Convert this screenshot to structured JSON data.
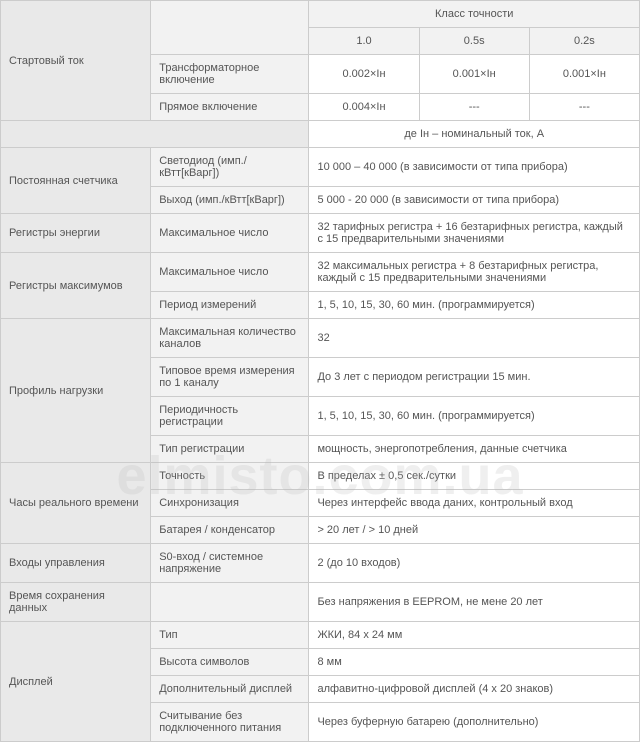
{
  "header": {
    "klass": "Класс точности",
    "c1": "1.0",
    "c2": "0.5s",
    "c3": "0.2s"
  },
  "start": {
    "group": "Стартовый ток",
    "p1": "Трансформаторное включение",
    "v11": "0.002×Iн",
    "v12": "0.001×Iн",
    "v13": "0.001×Iн",
    "p2": "Прямое включение",
    "v21": "0.004×Iн",
    "v22": "---",
    "v23": "---",
    "note": "де Iн – номинальный ток, А"
  },
  "const": {
    "group": "Постоянная счетчика",
    "p1": "Светодиод (имп./кВтт[кВарг])",
    "v1": "10 000 – 40 000 (в зависимости от типа прибора)",
    "p2": "Выход (имп./кВтт[кВарг])",
    "v2": "5 000 - 20 000 (в зависимости от типа прибора)"
  },
  "energy": {
    "group": "Регистры энергии",
    "p1": "Максимальное число",
    "v1": "32 тарифных регистра + 16 безтарифных регистра, каждый  с 15 предварительными значениями"
  },
  "max": {
    "group": "Регистры максимумов",
    "p1": "Максимальное число",
    "v1": "32 максимальных регистра + 8 безтарифных регистра, каждый с 15 предварительными значениями",
    "p2": "Период измерений",
    "v2": "1, 5, 10, 15, 30, 60 мин. (программируется)"
  },
  "profile": {
    "group": "Профиль нагрузки",
    "p1": "Максимальная количество каналов",
    "v1": "32",
    "p2": "Типовое время измерения по 1 каналу",
    "v2": "До 3 лет с периодом регистрации 15 мин.",
    "p3": "Периодичность регистрации",
    "v3": "1, 5, 10, 15, 30, 60 мин. (программируется)",
    "p4": "Тип регистрации",
    "v4": "мощность, энергопотребления, данные  счетчика"
  },
  "rtc": {
    "group": "Часы реального времени",
    "p1": "Точность",
    "v1": "В пределах ± 0,5 сек./сутки",
    "p2": "Синхронизация",
    "v2": "Через интерфейс ввода даних, контрольный вход",
    "p3": "Батарея / конденсатор",
    "v3": "> 20 лет / > 10 дней"
  },
  "inputs": {
    "group": "Входы управления",
    "p1": "S0-вход / системное напряжение",
    "v1": "2 (до 10 входов)"
  },
  "retain": {
    "group": "Время сохранения данных",
    "v1": "Без напряжения в EEPROM, не мене 20 лет"
  },
  "display": {
    "group": "Дисплей",
    "p1": "Тип",
    "v1": "ЖКИ, 84 х 24 мм",
    "p2": "Высота символов",
    "v2": "8 мм",
    "p3": "Дополнительный дисплей",
    "v3": "алфавитно-цифровой дисплей (4 х 20 знаков)",
    "p4": "Считывание без подключенного питания",
    "v4": "Через буферную батарею (дополнительно)"
  },
  "watermark": "elmisto.com.ua"
}
